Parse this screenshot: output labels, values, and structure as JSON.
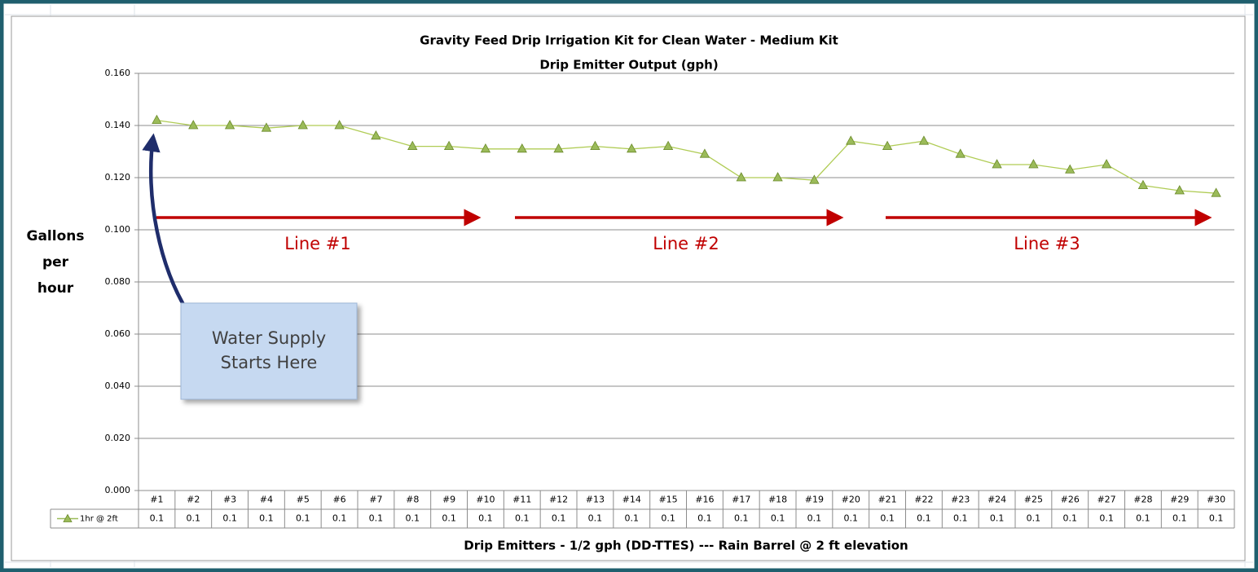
{
  "chart_data": {
    "type": "line",
    "title": "Gravity Feed Drip Irrigation Kit for Clean Water - Medium Kit",
    "subtitle": "Drip Emitter Output (gph)",
    "ylabel_lines": [
      "Gallons",
      "per",
      "hour"
    ],
    "xlabel": "Drip Emitters - 1/2 gph (DD-TTES) --- Rain Barrel @ 2 ft elevation",
    "categories": [
      "#1",
      "#2",
      "#3",
      "#4",
      "#5",
      "#6",
      "#7",
      "#8",
      "#9",
      "#10",
      "#11",
      "#12",
      "#13",
      "#14",
      "#15",
      "#16",
      "#17",
      "#18",
      "#19",
      "#20",
      "#21",
      "#22",
      "#23",
      "#24",
      "#25",
      "#26",
      "#27",
      "#28",
      "#29",
      "#30"
    ],
    "series": [
      {
        "name": "1hr @ 2ft",
        "color": "#9bbb59",
        "values": [
          0.142,
          0.14,
          0.14,
          0.139,
          0.14,
          0.14,
          0.136,
          0.132,
          0.132,
          0.131,
          0.131,
          0.131,
          0.132,
          0.131,
          0.132,
          0.129,
          0.12,
          0.12,
          0.119,
          0.134,
          0.132,
          0.134,
          0.129,
          0.125,
          0.125,
          0.123,
          0.125,
          0.117,
          0.115,
          0.114
        ],
        "value_labels": [
          "0.1",
          "0.1",
          "0.1",
          "0.1",
          "0.1",
          "0.1",
          "0.1",
          "0.1",
          "0.1",
          "0.1",
          "0.1",
          "0.1",
          "0.1",
          "0.1",
          "0.1",
          "0.1",
          "0.1",
          "0.1",
          "0.1",
          "0.1",
          "0.1",
          "0.1",
          "0.1",
          "0.1",
          "0.1",
          "0.1",
          "0.1",
          "0.1",
          "0.1",
          "0.1"
        ]
      }
    ],
    "ylim": [
      0,
      0.16
    ],
    "yticks": [
      {
        "value": 0,
        "label": "0.000"
      },
      {
        "value": 0.02,
        "label": "0.020"
      },
      {
        "value": 0.04,
        "label": "0.040"
      },
      {
        "value": 0.06,
        "label": "0.060"
      },
      {
        "value": 0.08,
        "label": "0.080"
      },
      {
        "value": 0.1,
        "label": "0.100"
      },
      {
        "value": 0.12,
        "label": "0.120"
      },
      {
        "value": 0.14,
        "label": "0.140"
      },
      {
        "value": 0.16,
        "label": "0.160"
      }
    ],
    "grid": true,
    "annotations": [
      "Line #1",
      "Line #2",
      "Line #3"
    ],
    "callout_lines": [
      "Water Supply",
      "Starts Here"
    ]
  }
}
